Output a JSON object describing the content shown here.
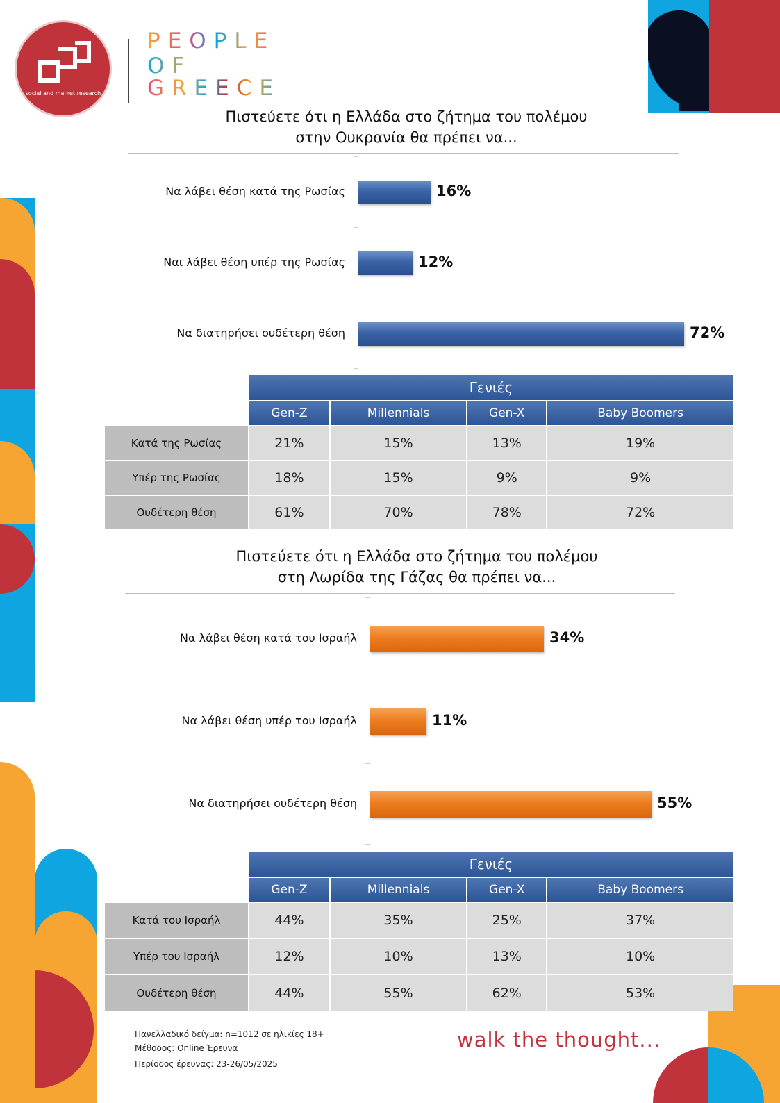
{
  "brand": {
    "company_tag": "social and market research",
    "pog_lines": [
      "PEOPLE",
      "OF",
      "GREECE"
    ],
    "tagline": "walk the thought..."
  },
  "colors": {
    "red": "#c0333a",
    "blue": "#0ea5e0",
    "orange": "#f6a532",
    "navy": "#0b0f22",
    "bar_blue": "#3a63a6",
    "bar_orange": "#ee7d1f",
    "table_header": "#3b64a3"
  },
  "section1": {
    "title_line1": "Πιστεύετε ότι η Ελλάδα στο ζήτημα του πολέμου",
    "title_line2": "στην Ουκρανία θα πρέπει να...",
    "table": {
      "group_header": "Γενιές",
      "columns": [
        "Gen-Z",
        "Millennials",
        "Gen-X",
        "Baby Boomers"
      ],
      "rows": [
        {
          "label": "Κατά της Ρωσίας",
          "values": [
            "21%",
            "15%",
            "13%",
            "19%"
          ]
        },
        {
          "label": "Υπέρ της Ρωσίας",
          "values": [
            "18%",
            "15%",
            "9%",
            "9%"
          ]
        },
        {
          "label": "Ουδέτερη θέση",
          "values": [
            "61%",
            "70%",
            "78%",
            "72%"
          ]
        }
      ]
    }
  },
  "section2": {
    "title_line1": "Πιστεύετε ότι η Ελλάδα στο ζήτημα του πολέμου",
    "title_line2": "στη Λωρίδα της Γάζας θα πρέπει να...",
    "table": {
      "group_header": "Γενιές",
      "columns": [
        "Gen-Z",
        "Millennials",
        "Gen-X",
        "Baby Boomers"
      ],
      "rows": [
        {
          "label": "Κατά του Ισραήλ",
          "values": [
            "44%",
            "35%",
            "25%",
            "37%"
          ]
        },
        {
          "label": "Υπέρ του Ισραήλ",
          "values": [
            "12%",
            "10%",
            "13%",
            "10%"
          ]
        },
        {
          "label": "Ουδέτερη θέση",
          "values": [
            "44%",
            "55%",
            "62%",
            "53%"
          ]
        }
      ]
    }
  },
  "chart_data": [
    {
      "type": "bar",
      "orientation": "horizontal",
      "title": "Πιστεύετε ότι η Ελλάδα στο ζήτημα του πολέμου στην Ουκρανία θα πρέπει να...",
      "categories": [
        "Να λάβει θέση κατά της Ρωσίας",
        "Ναι λάβει θέση υπέρ της Ρωσίας",
        "Να διατηρήσει ουδέτερη θέση"
      ],
      "values": [
        16,
        12,
        72
      ],
      "value_labels": [
        "16%",
        "12%",
        "72%"
      ],
      "xlim": [
        0,
        100
      ],
      "grid": false,
      "color": "#3a63a6"
    },
    {
      "type": "bar",
      "orientation": "horizontal",
      "title": "Πιστεύετε ότι η Ελλάδα στο ζήτημα του πολέμου στη Λωρίδα της Γάζας θα πρέπει να...",
      "categories": [
        "Να λάβει θέση κατά του Ισραήλ",
        "Να λάβει θέση υπέρ του Ισραήλ",
        "Να διατηρήσει ουδέτερη θέση"
      ],
      "values": [
        34,
        11,
        55
      ],
      "value_labels": [
        "34%",
        "11%",
        "55%"
      ],
      "xlim": [
        0,
        100
      ],
      "grid": false,
      "color": "#ee7d1f"
    }
  ],
  "footer": {
    "sample": "Πανελλαδικό δείγμα: n=1012 σε ηλικίες 18+",
    "method": "Μέθοδος: Online Έρευνα",
    "period": "Περίοδος έρευνας: 23-26/05/2025"
  }
}
